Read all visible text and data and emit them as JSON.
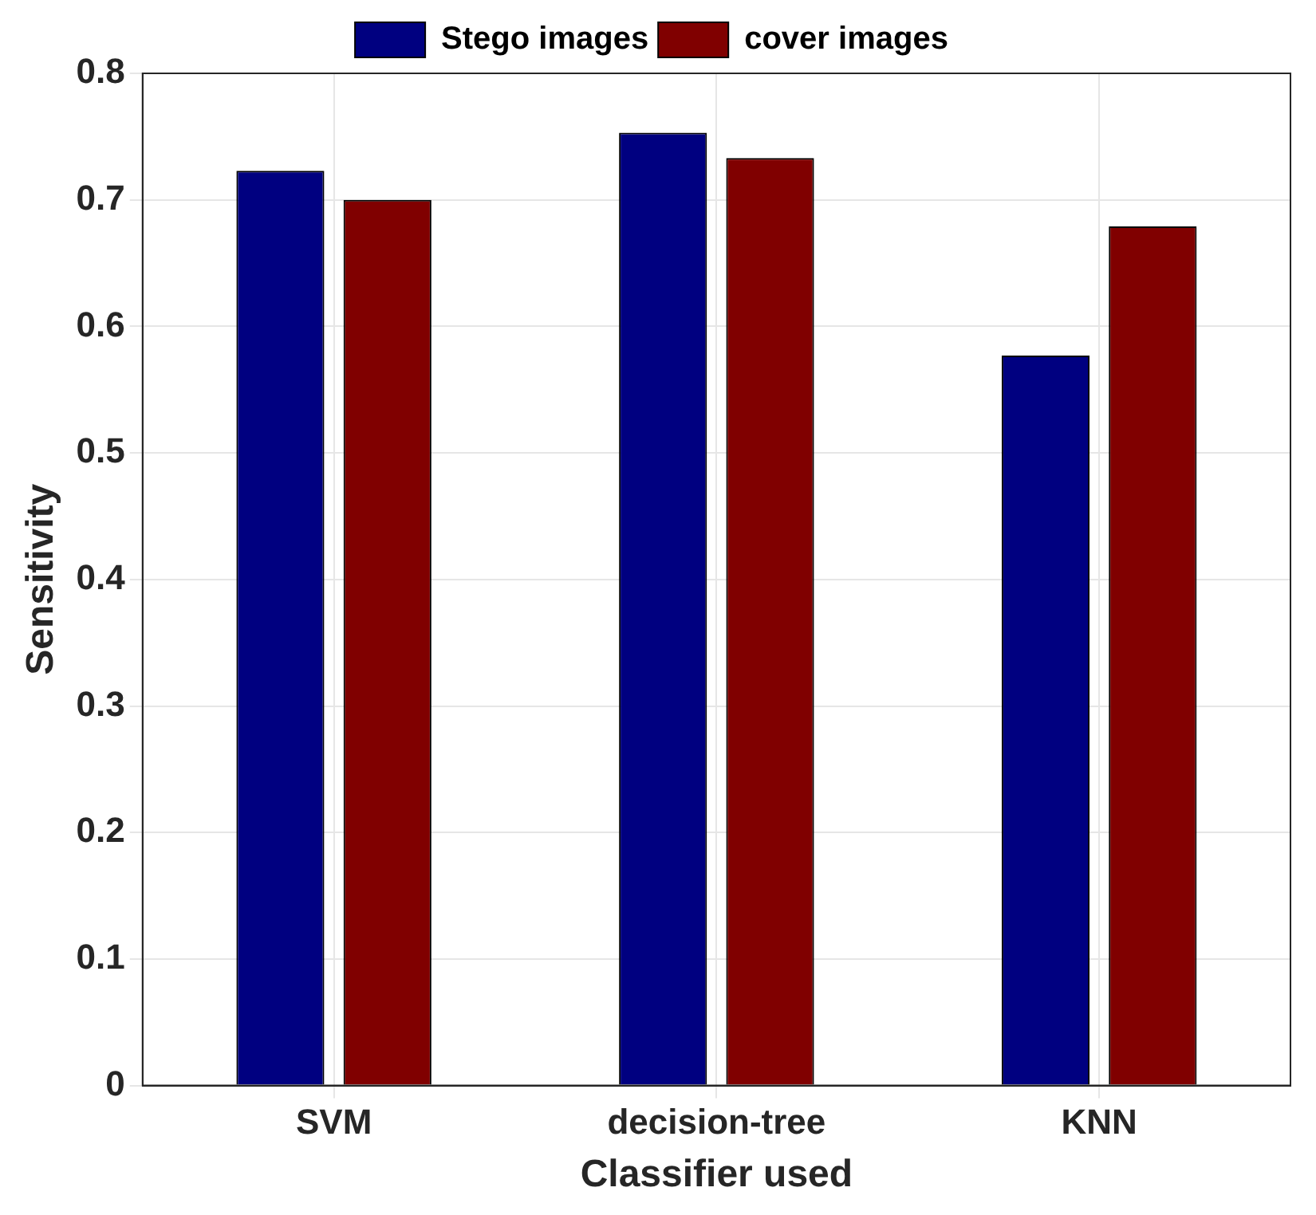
{
  "chart_data": {
    "type": "bar",
    "xlabel": "Classifier used",
    "ylabel": "Sensitivity",
    "categories": [
      "SVM",
      "decision-tree",
      "KNN"
    ],
    "series": [
      {
        "name": "Stego images",
        "color": "#000080",
        "values": [
          0.723,
          0.753,
          0.577
        ]
      },
      {
        "name": "cover images",
        "color": "#800000",
        "values": [
          0.7,
          0.733,
          0.679
        ]
      }
    ],
    "ylim": [
      0,
      0.8
    ],
    "yticks": [
      0,
      0.1,
      0.2,
      0.3,
      0.4,
      0.5,
      0.6,
      0.7,
      0.8
    ],
    "grid": true,
    "legend": "top"
  }
}
